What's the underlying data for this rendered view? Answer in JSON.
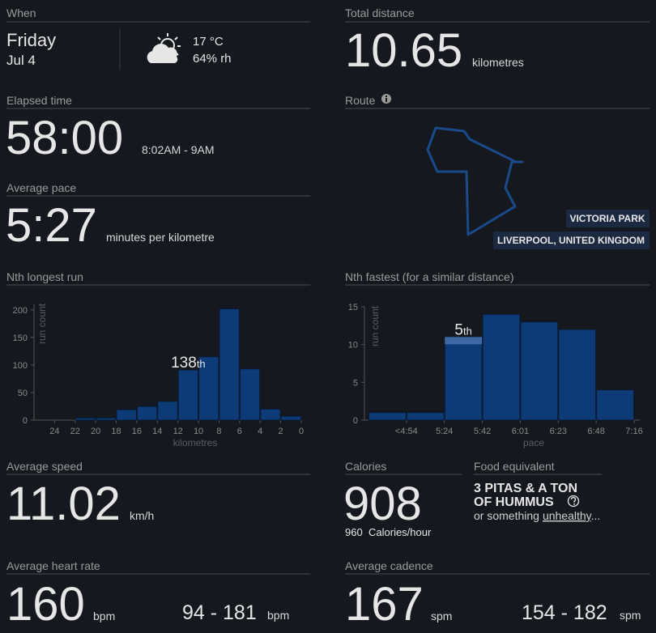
{
  "when": {
    "label": "When",
    "day": "Friday",
    "date": "Jul 4",
    "temperature": "17 °C",
    "humidity": "64% rh"
  },
  "total_distance": {
    "label": "Total distance",
    "value": 10.65,
    "unit": "kilometres"
  },
  "elapsed_time": {
    "label": "Elapsed time",
    "value": "58:00",
    "range": "8:02AM - 9AM"
  },
  "route": {
    "label": "Route",
    "place": "VICTORIA PARK",
    "location": "LIVERPOOL, UNITED KINGDOM"
  },
  "average_pace": {
    "label": "Average pace",
    "value": "5:27",
    "unit": "minutes per kilometre"
  },
  "average_speed": {
    "label": "Average speed",
    "value": 11.02,
    "unit": "km/h"
  },
  "calories": {
    "label": "Calories",
    "value": 908,
    "rate": 960,
    "rate_unit": "Calories/hour"
  },
  "food_equivalent": {
    "label": "Food equivalent",
    "lines": [
      "3 PITAS & A TON",
      "OF HUMMUS"
    ],
    "note": "or something",
    "link": "unhealthy",
    "ellipsis": "..."
  },
  "heart_rate": {
    "label": "Average heart rate",
    "value": 160,
    "unit": "bpm",
    "range": "94 - 181",
    "range_unit": "bpm"
  },
  "cadence": {
    "label": "Average cadence",
    "value": 167,
    "unit": "spm",
    "range": "154 - 182",
    "range_unit": "spm"
  },
  "chart_data": [
    {
      "type": "histogram",
      "title": "Nth longest run",
      "x_label": "kilometres",
      "y_label": "run count",
      "bins": [
        22,
        20,
        18,
        16,
        14,
        12,
        10,
        8,
        6,
        4,
        2,
        0
      ],
      "values": [
        4,
        4,
        19,
        25,
        34,
        91,
        115,
        202,
        93,
        20,
        7
      ],
      "xlim": [
        26,
        0
      ],
      "xticks": [
        24,
        22,
        20,
        18,
        16,
        14,
        12,
        10,
        8,
        6,
        4,
        2,
        0
      ],
      "ylim": [
        0,
        210
      ],
      "yticks": [
        0,
        50,
        100,
        150,
        200
      ],
      "color": "#0c3b78",
      "annotation": {
        "rank": 138,
        "suffix": "th"
      }
    },
    {
      "type": "histogram",
      "title": "Nth fastest (for a similar distance)",
      "x_label": "pace",
      "y_label": "run count",
      "bins": [
        null,
        "<4:54",
        "5:24",
        "5:42",
        "6:01",
        "6:23",
        "6:48",
        "7:16"
      ],
      "values": [
        1,
        1,
        11,
        14,
        13,
        12,
        4
      ],
      "ylim": [
        0,
        15
      ],
      "yticks": [
        0,
        5,
        10,
        15
      ],
      "color": "#0c3b78",
      "highlight_color": "#3d6aa6",
      "annotation": {
        "rank": 5,
        "suffix": "th"
      }
    }
  ]
}
